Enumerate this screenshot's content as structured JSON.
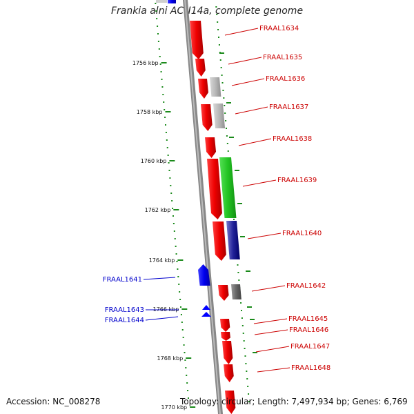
{
  "title": "Frankia alni ACN14a, complete genome",
  "accession": "Accession: NC_008278",
  "topology": "Topology: circular; Length: 7,497,934 bp; Genes: 6,769",
  "scale_labels": [
    "1756 kbp",
    "1758 kbp",
    "1760 kbp",
    "1762 kbp",
    "1764 kbp",
    "1766 kbp",
    "1768 kbp",
    "1770 kbp"
  ],
  "colors": {
    "forward_gene": "#ff0000",
    "reverse_gene": "#0000ff",
    "label_forward": "#cc0000",
    "label_reverse": "#0000cc",
    "backbone": "#888888",
    "dotted_track": "#1a8a1a",
    "cog_gray": "#b0b0b0",
    "cog_green": "#33cc33",
    "cog_blue": "#3333aa",
    "cog_dark": "#666666"
  },
  "forward_labels": [
    "FRAAL1634",
    "FRAAL1635",
    "FRAAL1636",
    "FRAAL1637",
    "FRAAL1638",
    "FRAAL1639",
    "FRAAL1640",
    "FRAAL1642",
    "FRAAL1645",
    "FRAAL1646",
    "FRAAL1647",
    "FRAAL1648"
  ],
  "reverse_labels": [
    "FRAAL1641",
    "FRAAL1643",
    "FRAAL1644"
  ]
}
